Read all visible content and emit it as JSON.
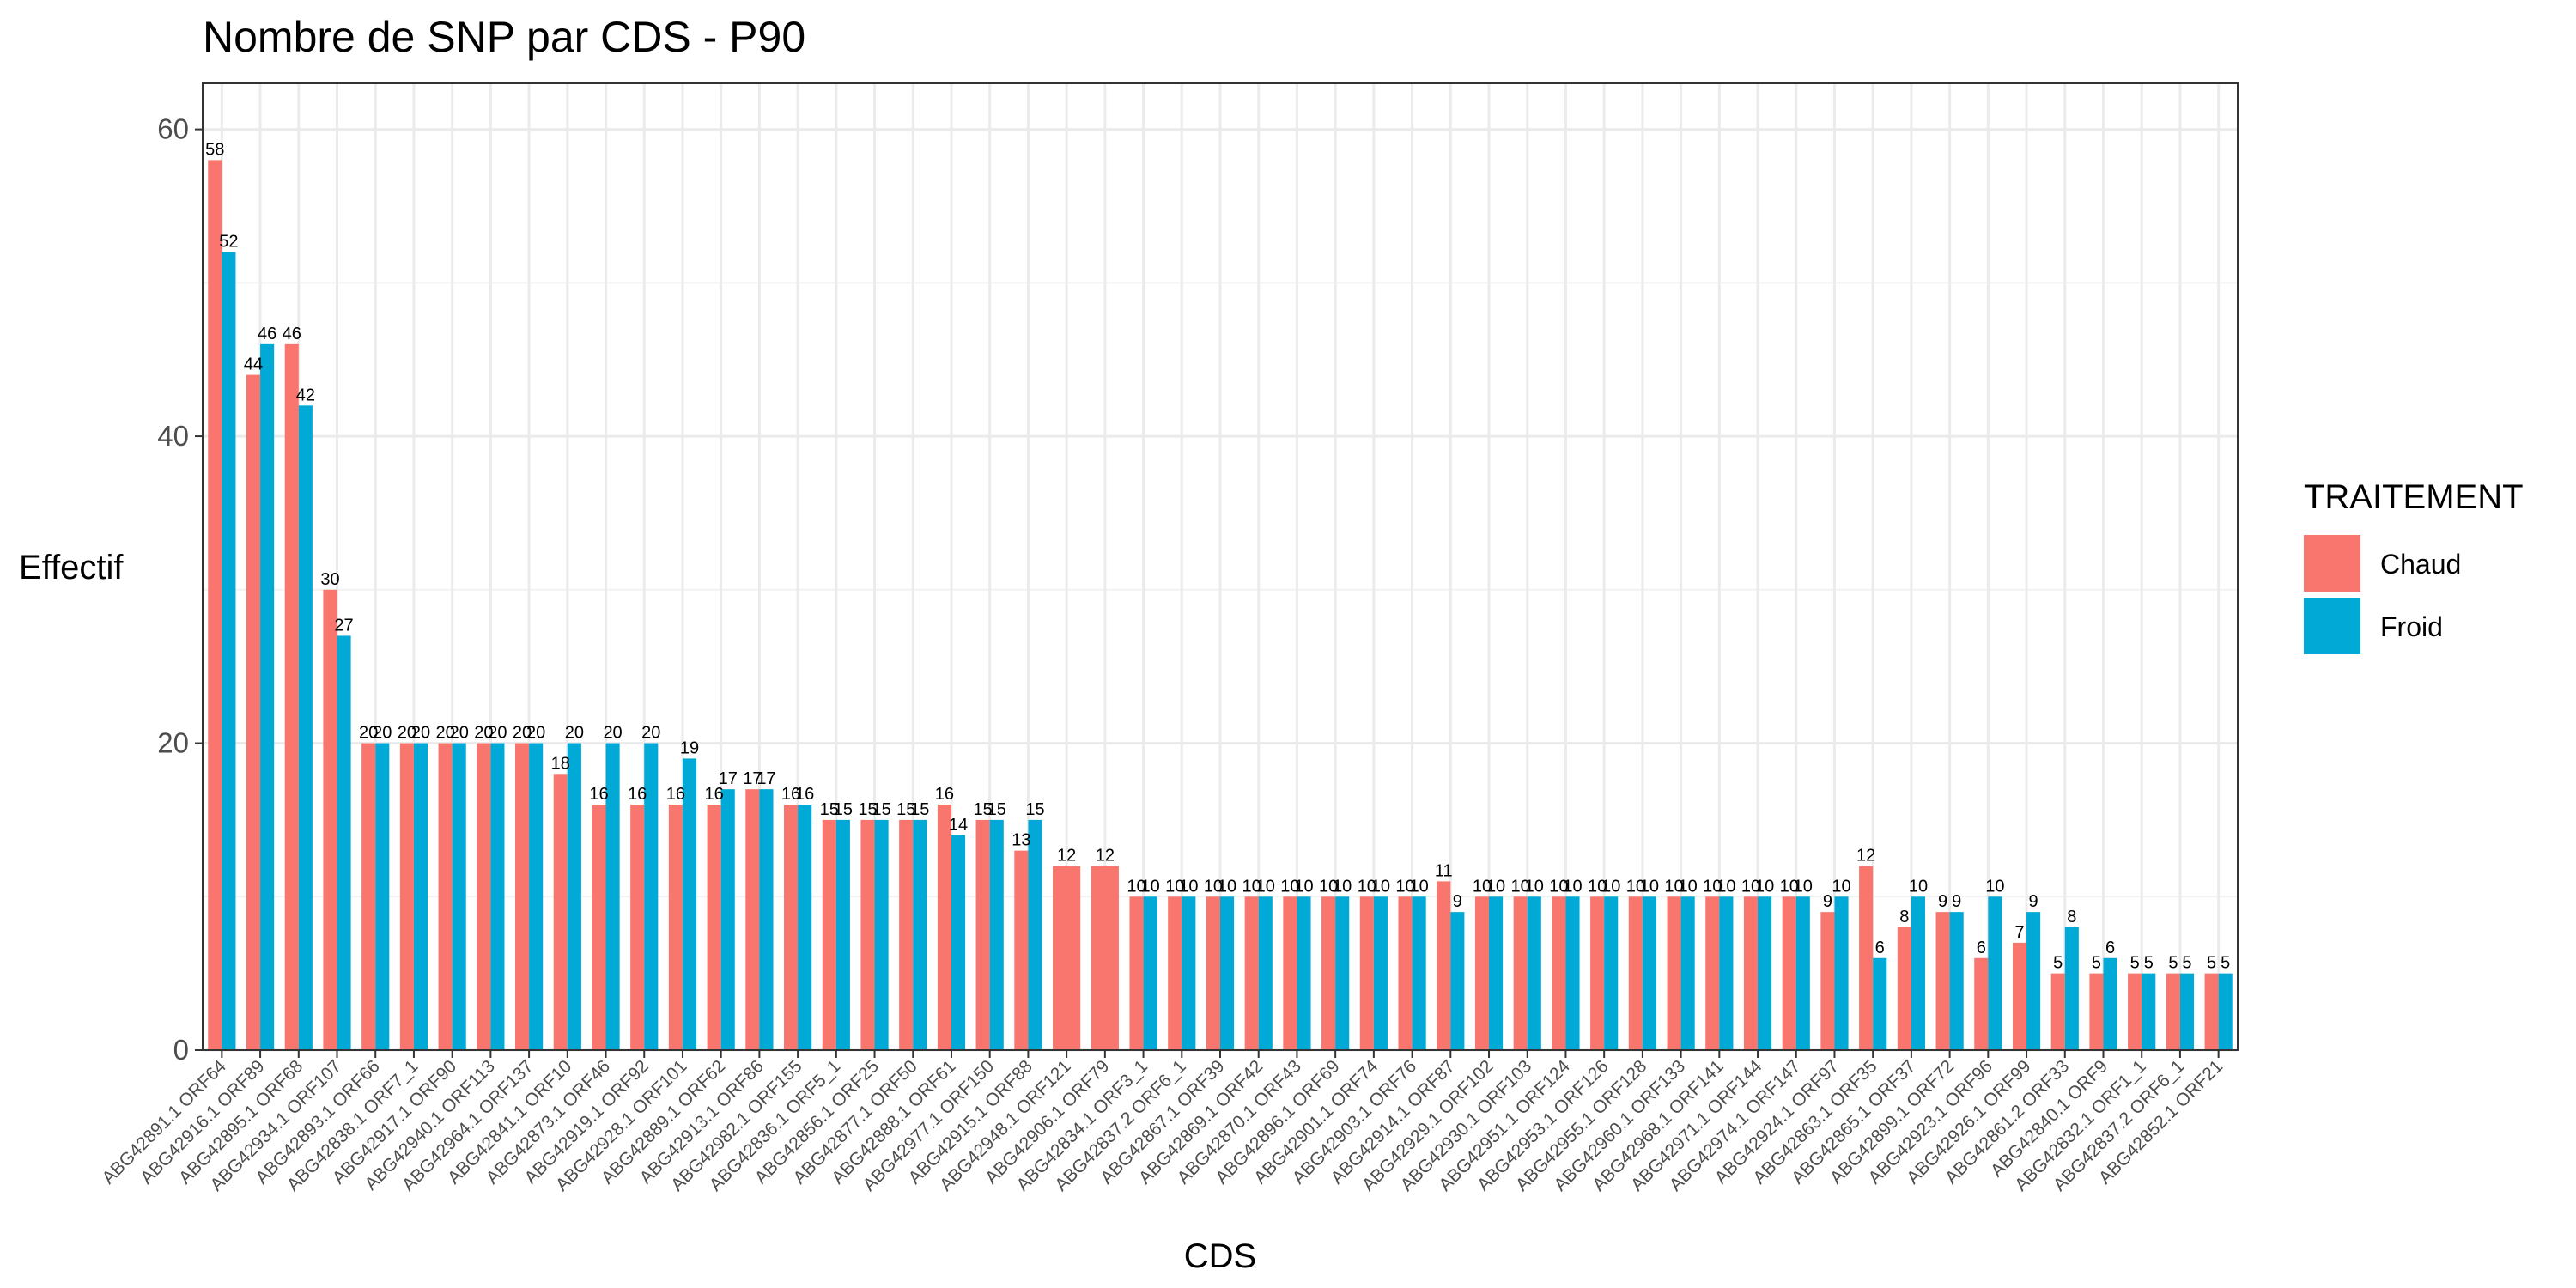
{
  "chart_data": {
    "type": "bar",
    "title": "Nombre de SNP par CDS - P90",
    "xlabel": "CDS",
    "ylabel": "Effectif",
    "ylim": [
      0,
      63
    ],
    "yticks": [
      0,
      20,
      40,
      60
    ],
    "grid": true,
    "legend": {
      "title": "TRAITEMENT",
      "placement": "right",
      "entries": [
        {
          "name": "Chaud",
          "color": "#F8766D"
        },
        {
          "name": "Froid",
          "color": "#00A9D6"
        }
      ]
    },
    "colors": {
      "Chaud": "#F8766D",
      "Froid": "#00A9D6"
    },
    "categories": [
      "ABG42891.1 ORF64",
      "ABG42916.1 ORF89",
      "ABG42895.1 ORF68",
      "ABG42934.1 ORF107",
      "ABG42893.1 ORF66",
      "ABG42838.1 ORF7_1",
      "ABG42917.1 ORF90",
      "ABG42940.1 ORF113",
      "ABG42964.1 ORF137",
      "ABG42841.1 ORF10",
      "ABG42873.1 ORF46",
      "ABG42919.1 ORF92",
      "ABG42928.1 ORF101",
      "ABG42889.1 ORF62",
      "ABG42913.1 ORF86",
      "ABG42982.1 ORF155",
      "ABG42836.1 ORF5_1",
      "ABG42856.1 ORF25",
      "ABG42877.1 ORF50",
      "ABG42888.1 ORF61",
      "ABG42977.1 ORF150",
      "ABG42915.1 ORF88",
      "ABG42948.1 ORF121",
      "ABG42906.1 ORF79",
      "ABG42834.1 ORF3_1",
      "ABG42837.2 ORF6_1",
      "ABG42867.1 ORF39",
      "ABG42869.1 ORF42",
      "ABG42870.1 ORF43",
      "ABG42896.1 ORF69",
      "ABG42901.1 ORF74",
      "ABG42903.1 ORF76",
      "ABG42914.1 ORF87",
      "ABG42929.1 ORF102",
      "ABG42930.1 ORF103",
      "ABG42951.1 ORF124",
      "ABG42953.1 ORF126",
      "ABG42955.1 ORF128",
      "ABG42960.1 ORF133",
      "ABG42968.1 ORF141",
      "ABG42971.1 ORF144",
      "ABG42974.1 ORF147",
      "ABG42924.1 ORF97",
      "ABG42863.1 ORF35",
      "ABG42865.1 ORF37",
      "ABG42899.1 ORF72",
      "ABG42923.1 ORF96",
      "ABG42926.1 ORF99",
      "ABG42861.2 ORF33",
      "ABG42840.1 ORF9",
      "ABG42832.1 ORF1_1",
      "ABG42837.2 ORF6_1",
      "ABG42852.1 ORF21"
    ],
    "series": [
      {
        "name": "Chaud",
        "values": [
          58,
          44,
          46,
          30,
          20,
          20,
          20,
          20,
          20,
          18,
          16,
          16,
          16,
          16,
          17,
          16,
          15,
          15,
          15,
          16,
          15,
          13,
          12,
          12,
          10,
          10,
          10,
          10,
          10,
          10,
          10,
          10,
          11,
          10,
          10,
          10,
          10,
          10,
          10,
          10,
          10,
          10,
          9,
          12,
          8,
          9,
          6,
          7,
          5,
          5,
          5,
          5,
          5
        ]
      },
      {
        "name": "Froid",
        "values": [
          52,
          46,
          42,
          27,
          20,
          20,
          20,
          20,
          20,
          20,
          20,
          20,
          19,
          17,
          17,
          16,
          15,
          15,
          15,
          14,
          15,
          15,
          null,
          null,
          10,
          10,
          10,
          10,
          10,
          10,
          10,
          10,
          9,
          10,
          10,
          10,
          10,
          10,
          10,
          10,
          10,
          10,
          10,
          6,
          10,
          9,
          10,
          9,
          8,
          6,
          5,
          5,
          5
        ]
      }
    ]
  }
}
